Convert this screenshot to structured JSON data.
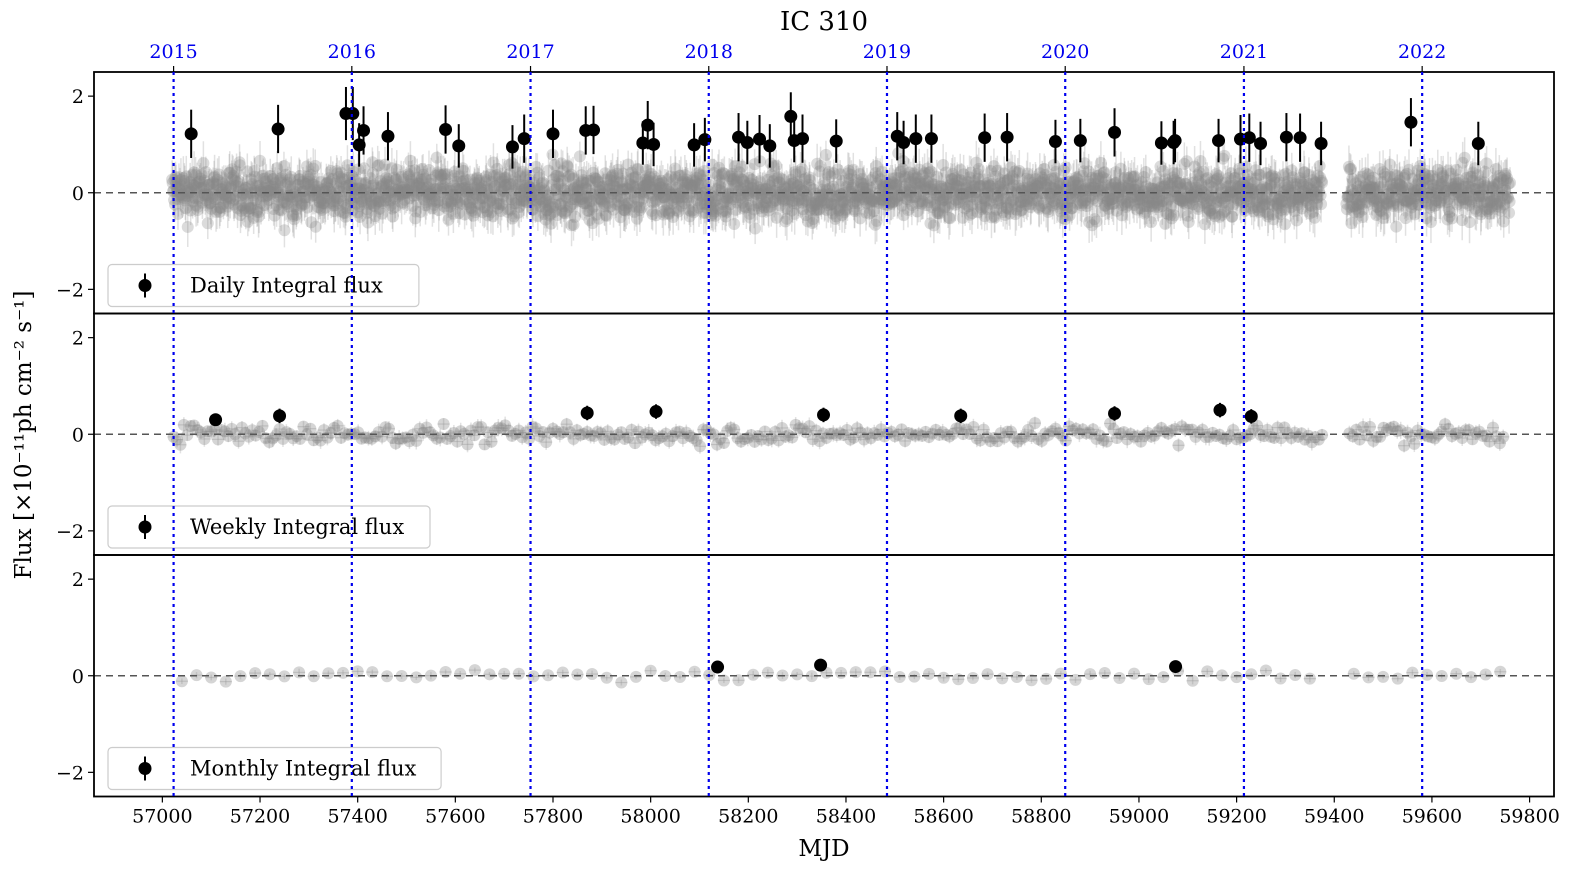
{
  "chart_data": {
    "type": "scatter",
    "title": "IC 310",
    "xlabel": "MJD",
    "ylabel": "Flux [×10⁻¹¹ph cm⁻² s⁻¹]",
    "xlim": [
      56860,
      59850
    ],
    "x_ticks": [
      57000,
      57200,
      57400,
      57600,
      57800,
      58000,
      58200,
      58400,
      58600,
      58800,
      59000,
      59200,
      59400,
      59600,
      59800
    ],
    "y_ticks": [
      -2,
      0,
      2
    ],
    "reference_line_y": 0,
    "year_markers": [
      {
        "label": "2015",
        "mjd": 57023
      },
      {
        "label": "2016",
        "mjd": 57388
      },
      {
        "label": "2017",
        "mjd": 57754
      },
      {
        "label": "2018",
        "mjd": 58119
      },
      {
        "label": "2019",
        "mjd": 58484
      },
      {
        "label": "2020",
        "mjd": 58849
      },
      {
        "label": "2021",
        "mjd": 59215
      },
      {
        "label": "2022",
        "mjd": 59580
      }
    ],
    "colors": {
      "detection": "#000000",
      "background": "#888888",
      "year_line": "#0000ee",
      "zero_line": "#555555"
    },
    "panels": [
      {
        "name": "Daily Integral flux",
        "legend": "Daily Integral flux",
        "ylim": [
          -2.5,
          2.5
        ],
        "background_series": {
          "x_range": [
            57020,
            59760
          ],
          "gap": [
            59375,
            59425
          ],
          "step": 1,
          "scatter_sd": 0.38,
          "err": 0.35
        },
        "points": [
          {
            "x": 57059,
            "y": 1.22,
            "err": 0.5
          },
          {
            "x": 57237,
            "y": 1.32,
            "err": 0.5
          },
          {
            "x": 57376,
            "y": 1.64,
            "err": 0.55
          },
          {
            "x": 57390,
            "y": 1.64,
            "err": 0.55
          },
          {
            "x": 57403,
            "y": 0.99,
            "err": 0.45
          },
          {
            "x": 57412,
            "y": 1.29,
            "err": 0.5
          },
          {
            "x": 57462,
            "y": 1.17,
            "err": 0.5
          },
          {
            "x": 57580,
            "y": 1.31,
            "err": 0.5
          },
          {
            "x": 57607,
            "y": 0.97,
            "err": 0.45
          },
          {
            "x": 57717,
            "y": 0.95,
            "err": 0.45
          },
          {
            "x": 57741,
            "y": 1.12,
            "err": 0.5
          },
          {
            "x": 57800,
            "y": 1.22,
            "err": 0.5
          },
          {
            "x": 57867,
            "y": 1.29,
            "err": 0.5
          },
          {
            "x": 57883,
            "y": 1.3,
            "err": 0.5
          },
          {
            "x": 57984,
            "y": 1.03,
            "err": 0.45
          },
          {
            "x": 57994,
            "y": 1.4,
            "err": 0.5
          },
          {
            "x": 58006,
            "y": 1.0,
            "err": 0.45
          },
          {
            "x": 58089,
            "y": 0.99,
            "err": 0.45
          },
          {
            "x": 58111,
            "y": 1.1,
            "err": 0.45
          },
          {
            "x": 58180,
            "y": 1.15,
            "err": 0.5
          },
          {
            "x": 58198,
            "y": 1.04,
            "err": 0.45
          },
          {
            "x": 58223,
            "y": 1.11,
            "err": 0.5
          },
          {
            "x": 58244,
            "y": 0.97,
            "err": 0.45
          },
          {
            "x": 58287,
            "y": 1.58,
            "err": 0.5
          },
          {
            "x": 58294,
            "y": 1.08,
            "err": 0.45
          },
          {
            "x": 58311,
            "y": 1.12,
            "err": 0.5
          },
          {
            "x": 58380,
            "y": 1.07,
            "err": 0.45
          },
          {
            "x": 58505,
            "y": 1.17,
            "err": 0.5
          },
          {
            "x": 58518,
            "y": 1.04,
            "err": 0.45
          },
          {
            "x": 58543,
            "y": 1.12,
            "err": 0.5
          },
          {
            "x": 58575,
            "y": 1.12,
            "err": 0.5
          },
          {
            "x": 58684,
            "y": 1.14,
            "err": 0.5
          },
          {
            "x": 58730,
            "y": 1.15,
            "err": 0.5
          },
          {
            "x": 58829,
            "y": 1.06,
            "err": 0.45
          },
          {
            "x": 58880,
            "y": 1.08,
            "err": 0.45
          },
          {
            "x": 58950,
            "y": 1.25,
            "err": 0.5
          },
          {
            "x": 59046,
            "y": 1.03,
            "err": 0.45
          },
          {
            "x": 59071,
            "y": 1.04,
            "err": 0.45
          },
          {
            "x": 59074,
            "y": 1.08,
            "err": 0.45
          },
          {
            "x": 59163,
            "y": 1.08,
            "err": 0.45
          },
          {
            "x": 59208,
            "y": 1.11,
            "err": 0.5
          },
          {
            "x": 59226,
            "y": 1.14,
            "err": 0.5
          },
          {
            "x": 59249,
            "y": 1.02,
            "err": 0.45
          },
          {
            "x": 59302,
            "y": 1.15,
            "err": 0.5
          },
          {
            "x": 59330,
            "y": 1.14,
            "err": 0.5
          },
          {
            "x": 59373,
            "y": 1.02,
            "err": 0.45
          },
          {
            "x": 59557,
            "y": 1.46,
            "err": 0.5
          },
          {
            "x": 59695,
            "y": 1.02,
            "err": 0.45
          }
        ]
      },
      {
        "name": "Weekly Integral flux",
        "legend": "Weekly Integral flux",
        "ylim": [
          -2.5,
          2.5
        ],
        "background_series": {
          "x_range": [
            57023,
            59750
          ],
          "gap": [
            59375,
            59425
          ],
          "step": 7,
          "scatter_sd": 0.14,
          "err": 0.14
        },
        "points": [
          {
            "x": 57109,
            "y": 0.3,
            "err": 0.1
          },
          {
            "x": 57240,
            "y": 0.38,
            "err": 0.15
          },
          {
            "x": 57870,
            "y": 0.44,
            "err": 0.15
          },
          {
            "x": 58011,
            "y": 0.47,
            "err": 0.15
          },
          {
            "x": 58354,
            "y": 0.4,
            "err": 0.15
          },
          {
            "x": 58635,
            "y": 0.38,
            "err": 0.15
          },
          {
            "x": 58950,
            "y": 0.43,
            "err": 0.15
          },
          {
            "x": 59166,
            "y": 0.5,
            "err": 0.15
          },
          {
            "x": 59230,
            "y": 0.37,
            "err": 0.15
          }
        ]
      },
      {
        "name": "Monthly Integral flux",
        "legend": "Monthly Integral flux",
        "ylim": [
          -2.5,
          2.5
        ],
        "background_series": {
          "x_range": [
            57040,
            59745
          ],
          "gap": [
            59375,
            59425
          ],
          "step": 30,
          "scatter_sd": 0.08,
          "err": 0.06
        },
        "points": [
          {
            "x": 58137,
            "y": 0.18,
            "err": 0.05
          },
          {
            "x": 58348,
            "y": 0.22,
            "err": 0.05
          },
          {
            "x": 59075,
            "y": 0.19,
            "err": 0.05
          }
        ]
      }
    ]
  }
}
